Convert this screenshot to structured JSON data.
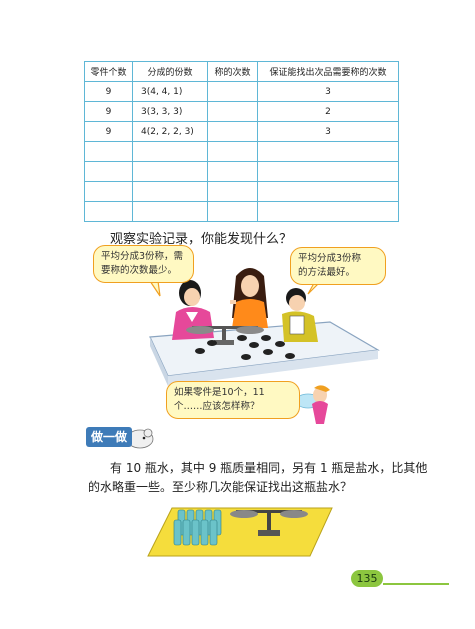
{
  "table": {
    "headers": [
      "零件个数",
      "分成的份数",
      "称的次数",
      "保证能找出次品需要称的次数"
    ],
    "rows": [
      [
        "9",
        "3(4, 4, 1)",
        "",
        "3"
      ],
      [
        "9",
        "3(3, 3, 3)",
        "",
        "2"
      ],
      [
        "9",
        "4(2, 2, 2, 3)",
        "",
        "3"
      ],
      [
        "",
        "",
        "",
        ""
      ],
      [
        "",
        "",
        "",
        ""
      ],
      [
        "",
        "",
        "",
        ""
      ],
      [
        "",
        "",
        "",
        ""
      ]
    ]
  },
  "question": "观察实验记录，你能发现什么？",
  "bubbles": {
    "left": [
      "平均分成3份称，需",
      "要称的次数最少。"
    ],
    "right": [
      "平均分成3份称",
      "的方法最好。"
    ],
    "bottom": [
      "如果零件是10个，11",
      "个……应该怎样称？"
    ]
  },
  "section_label": "做一做",
  "exercise": {
    "line1": "有 10 瓶水，其中 9 瓶质量相同，另有 1 瓶是盐水，比其他",
    "line2": "的水略重一些。至少称几次能保证找出这瓶盐水？"
  },
  "page_number": "135",
  "colors": {
    "table_border": "#5fb7d6",
    "bubble_fill": "#fff9c2",
    "bubble_border": "#f0a020",
    "label_blue": "#3e7bb8",
    "page_green": "#8cc63f",
    "tray_yellow": "#f5dd3c"
  }
}
